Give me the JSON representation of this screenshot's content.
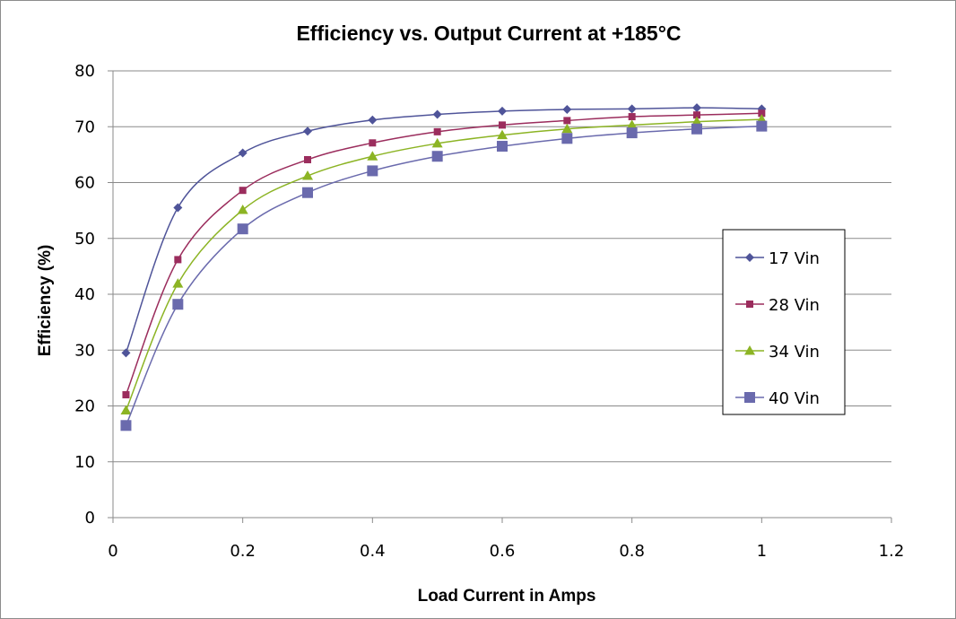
{
  "chart_data": {
    "type": "line",
    "title": "Efficiency vs. Output Current at +185°C",
    "xlabel": "Load Current in Amps",
    "ylabel": "Efficiency (%)",
    "xlim": [
      0,
      1.2
    ],
    "ylim": [
      0,
      80
    ],
    "x_ticks": [
      0,
      0.2,
      0.4,
      0.6,
      0.8,
      1,
      1.2
    ],
    "x_tick_labels": [
      "0",
      "0.2",
      "0.4",
      "0.6",
      "0.8",
      "1",
      "1.2"
    ],
    "y_ticks": [
      0,
      10,
      20,
      30,
      40,
      50,
      60,
      70,
      80
    ],
    "y_tick_labels": [
      "0",
      "10",
      "20",
      "30",
      "40",
      "50",
      "60",
      "70",
      "80"
    ],
    "grid": "horizontal",
    "legend_position": "right",
    "x": [
      0.02,
      0.1,
      0.2,
      0.3,
      0.4,
      0.5,
      0.6,
      0.7,
      0.8,
      0.9,
      1.0
    ],
    "series": [
      {
        "name": "17 Vin",
        "color": "#4f5499",
        "marker": "diamond",
        "values": [
          29.5,
          55.5,
          65.3,
          69.2,
          71.2,
          72.2,
          72.8,
          73.1,
          73.2,
          73.4,
          73.2
        ]
      },
      {
        "name": "28 Vin",
        "color": "#9b2d5d",
        "marker": "square",
        "values": [
          22.0,
          46.2,
          58.6,
          64.1,
          67.1,
          69.1,
          70.3,
          71.1,
          71.8,
          72.1,
          72.4
        ]
      },
      {
        "name": "34 Vin",
        "color": "#8cb424",
        "marker": "triangle",
        "values": [
          19.2,
          41.9,
          55.1,
          61.2,
          64.7,
          67.0,
          68.5,
          69.6,
          70.3,
          70.9,
          71.3
        ]
      },
      {
        "name": "40 Vin",
        "color": "#6a6aad",
        "marker": "square-large",
        "values": [
          16.5,
          38.2,
          51.7,
          58.2,
          62.1,
          64.7,
          66.5,
          67.9,
          68.9,
          69.6,
          70.1
        ]
      }
    ]
  }
}
